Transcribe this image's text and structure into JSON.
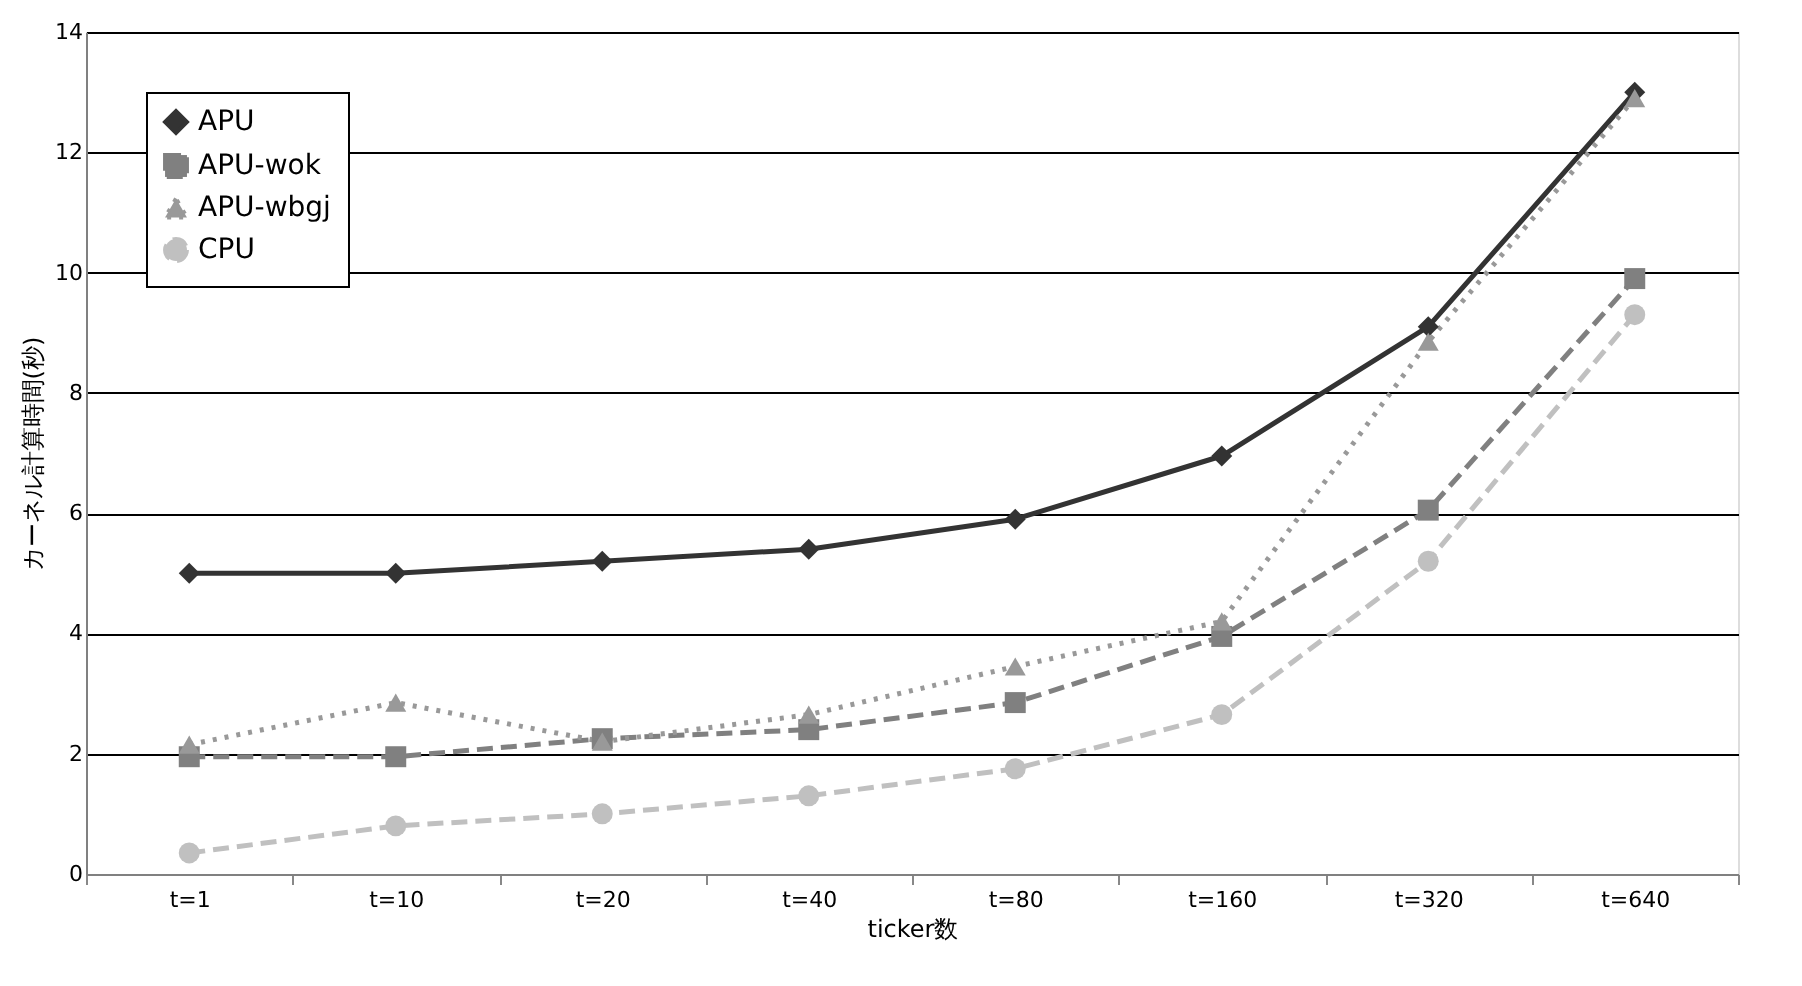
{
  "chart_data": {
    "type": "line",
    "xlabel": "ticker数",
    "ylabel": "カーネル計算時間(秒)",
    "categories": [
      "t=1",
      "t=10",
      "t=20",
      "t=40",
      "t=80",
      "t=160",
      "t=320",
      "t=640"
    ],
    "series": [
      {
        "name": "APU",
        "color": "#333333",
        "marker": "diamond",
        "line_style": "solid",
        "values": [
          5,
          5,
          5.2,
          5.4,
          5.9,
          6.95,
          9.1,
          13
        ]
      },
      {
        "name": "APU-wok",
        "color": "#808080",
        "marker": "square",
        "line_style": "dashed",
        "values": [
          1.95,
          1.95,
          2.25,
          2.4,
          2.85,
          3.95,
          6.05,
          9.9
        ]
      },
      {
        "name": "APU-wbgj",
        "color": "#999999",
        "marker": "triangle",
        "line_style": "dotted",
        "values": [
          2.15,
          2.85,
          2.2,
          2.65,
          3.45,
          4.2,
          8.85,
          12.9
        ]
      },
      {
        "name": "CPU",
        "color": "#c0c0c0",
        "marker": "circle",
        "line_style": "dashed",
        "values": [
          0.35,
          0.8,
          1.0,
          1.3,
          1.75,
          2.65,
          5.2,
          9.3
        ]
      }
    ],
    "ylim": [
      0,
      14
    ],
    "yticks": [
      0,
      2,
      4,
      6,
      8,
      10,
      12,
      14
    ],
    "grid": "y",
    "legend": "top left"
  }
}
